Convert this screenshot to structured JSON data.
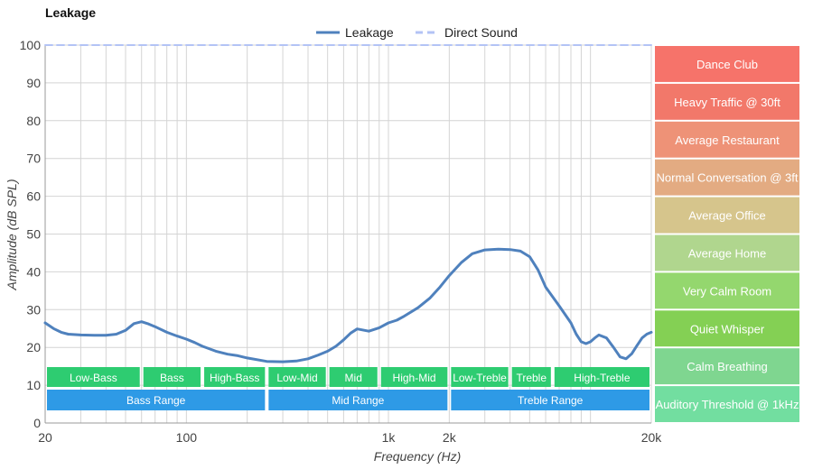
{
  "chart_data": {
    "type": "line",
    "title": "Leakage",
    "xlabel": "Frequency (Hz)",
    "ylabel": "Amplitude (dB SPL)",
    "x_scale": "log",
    "xlim": [
      20,
      20000
    ],
    "ylim": [
      0,
      100
    ],
    "x_tick_labels": [
      {
        "value": 20,
        "label": "20"
      },
      {
        "value": 100,
        "label": "100"
      },
      {
        "value": 1000,
        "label": "1k"
      },
      {
        "value": 2000,
        "label": "2k"
      },
      {
        "value": 20000,
        "label": "20k"
      }
    ],
    "y_ticks": [
      0,
      10,
      20,
      30,
      40,
      50,
      60,
      70,
      80,
      90,
      100
    ],
    "grid": true,
    "legend_position": "top-center",
    "series": [
      {
        "name": "Leakage",
        "color": "#4f81bd",
        "style": "solid",
        "x": [
          20,
          22,
          24,
          26,
          30,
          35,
          40,
          45,
          50,
          55,
          60,
          65,
          70,
          80,
          90,
          100,
          110,
          120,
          140,
          160,
          180,
          200,
          250,
          300,
          350,
          400,
          450,
          500,
          550,
          600,
          650,
          700,
          800,
          900,
          1000,
          1100,
          1200,
          1400,
          1600,
          1800,
          2000,
          2300,
          2600,
          3000,
          3500,
          4000,
          4500,
          5000,
          5500,
          6000,
          7000,
          8000,
          8500,
          9000,
          9500,
          10000,
          10500,
          11000,
          12000,
          13000,
          14000,
          15000,
          16000,
          17000,
          18000,
          19000,
          20000
        ],
        "y": [
          26.5,
          25,
          24,
          23.5,
          23.3,
          23.2,
          23.2,
          23.5,
          24.5,
          26.3,
          26.8,
          26.2,
          25.5,
          24,
          23,
          22.2,
          21.3,
          20.3,
          19,
          18.2,
          17.8,
          17.2,
          16.3,
          16.2,
          16.4,
          17,
          18,
          19,
          20.3,
          22,
          23.8,
          24.9,
          24.3,
          25.2,
          26.5,
          27.2,
          28.3,
          30.5,
          33,
          36,
          39,
          42.5,
          44.8,
          45.8,
          46,
          45.9,
          45.5,
          44,
          40.5,
          36,
          31,
          26.5,
          23.5,
          21.5,
          21,
          21.5,
          22.5,
          23.3,
          22.5,
          20,
          17.5,
          17,
          18.3,
          20.5,
          22.5,
          23.5,
          24
        ]
      },
      {
        "name": "Direct Sound",
        "color": "#b3c3f5",
        "style": "dashed",
        "x": [
          20,
          20000
        ],
        "y": [
          100,
          100
        ]
      }
    ],
    "range_bands": {
      "color": "#2ecc71",
      "text_color": "#ffffff",
      "items": [
        {
          "label": "Low-Bass",
          "from": 20,
          "to": 60
        },
        {
          "label": "Bass",
          "from": 60,
          "to": 120
        },
        {
          "label": "High-Bass",
          "from": 120,
          "to": 250
        },
        {
          "label": "Low-Mid",
          "from": 250,
          "to": 500
        },
        {
          "label": "Mid",
          "from": 500,
          "to": 900
        },
        {
          "label": "High-Mid",
          "from": 900,
          "to": 2000
        },
        {
          "label": "Low-Treble",
          "from": 2000,
          "to": 4000
        },
        {
          "label": "Treble",
          "from": 4000,
          "to": 6500
        },
        {
          "label": "High-Treble",
          "from": 6500,
          "to": 20000
        }
      ]
    },
    "ranges": {
      "color": "#2e9ae6",
      "text_color": "#ffffff",
      "items": [
        {
          "label": "Bass Range",
          "from": 20,
          "to": 250
        },
        {
          "label": "Mid Range",
          "from": 250,
          "to": 2000
        },
        {
          "label": "Treble Range",
          "from": 2000,
          "to": 20000
        }
      ]
    },
    "reference_levels": [
      {
        "label": "Dance Club",
        "from": 90,
        "to": 100,
        "color": "#f6736a"
      },
      {
        "label": "Heavy Traffic @ 30ft",
        "from": 80,
        "to": 90,
        "color": "#f2786a"
      },
      {
        "label": "Average Restaurant",
        "from": 70,
        "to": 80,
        "color": "#ee9277"
      },
      {
        "label": "Normal Conversation @ 3ft",
        "from": 60,
        "to": 70,
        "color": "#e3ab82"
      },
      {
        "label": "Average Office",
        "from": 50,
        "to": 60,
        "color": "#d6c58c"
      },
      {
        "label": "Average Home",
        "from": 40,
        "to": 50,
        "color": "#b0d68e"
      },
      {
        "label": "Very Calm Room",
        "from": 30,
        "to": 40,
        "color": "#94d76e"
      },
      {
        "label": "Quiet Whisper",
        "from": 20,
        "to": 30,
        "color": "#84d054"
      },
      {
        "label": "Calm Breathing",
        "from": 10,
        "to": 20,
        "color": "#7fd690"
      },
      {
        "label": "Auditory Threshold @ 1kHz",
        "from": 0,
        "to": 10,
        "color": "#72dea0"
      }
    ]
  }
}
